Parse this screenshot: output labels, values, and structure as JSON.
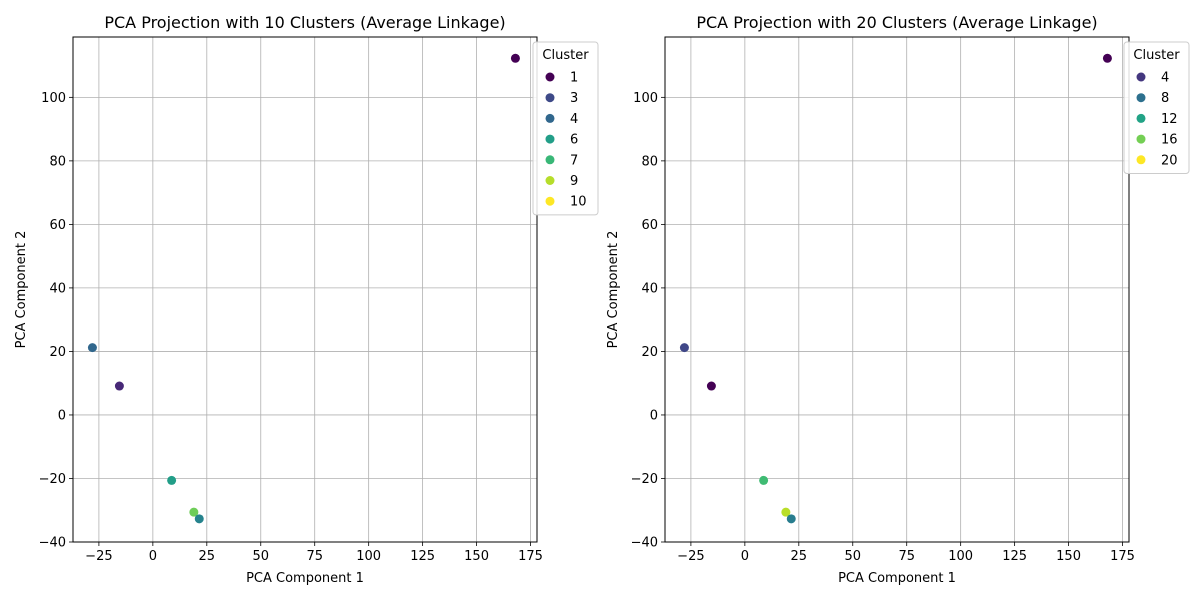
{
  "chart_data": [
    {
      "type": "scatter",
      "title": "PCA Projection with 10 Clusters (Average Linkage)",
      "xlabel": "PCA Component 1",
      "ylabel": "PCA Component 2",
      "xlim": [
        -37,
        178
      ],
      "ylim": [
        -40,
        119
      ],
      "xticks": [
        -25,
        0,
        25,
        50,
        75,
        100,
        125,
        150,
        175
      ],
      "yticks": [
        -40,
        -20,
        0,
        20,
        40,
        60,
        80,
        100
      ],
      "grid": true,
      "colormap": "viridis",
      "cluster_range": [
        1,
        10
      ],
      "legend": {
        "title": "Cluster",
        "placement": "upper right, outside",
        "entries": [
          {
            "label": "1",
            "value": 1
          },
          {
            "label": "3",
            "value": 3
          },
          {
            "label": "4",
            "value": 4
          },
          {
            "label": "6",
            "value": 6
          },
          {
            "label": "7",
            "value": 7
          },
          {
            "label": "9",
            "value": 9
          },
          {
            "label": "10",
            "value": 10
          }
        ]
      },
      "points": [
        {
          "x": 168,
          "y": 112.3,
          "cluster": 1
        },
        {
          "x": -28,
          "y": 21.2,
          "cluster": 4
        },
        {
          "x": -15.5,
          "y": 9.1,
          "cluster": 2
        },
        {
          "x": 8.7,
          "y": -20.6,
          "cluster": 6
        },
        {
          "x": 19,
          "y": -30.6,
          "cluster": 8
        },
        {
          "x": 21.5,
          "y": -32.7,
          "cluster": 5
        }
      ]
    },
    {
      "type": "scatter",
      "title": "PCA Projection with 20 Clusters (Average Linkage)",
      "xlabel": "PCA Component 1",
      "ylabel": "PCA Component 2",
      "xlim": [
        -37,
        178
      ],
      "ylim": [
        -40,
        119
      ],
      "xticks": [
        -25,
        0,
        25,
        50,
        75,
        100,
        125,
        150,
        175
      ],
      "yticks": [
        -40,
        -20,
        0,
        20,
        40,
        60,
        80,
        100
      ],
      "grid": true,
      "colormap": "viridis",
      "cluster_range": [
        1,
        20
      ],
      "legend": {
        "title": "Cluster",
        "placement": "upper right, outside",
        "entries": [
          {
            "label": "4",
            "value": 4
          },
          {
            "label": "8",
            "value": 8
          },
          {
            "label": "12",
            "value": 12
          },
          {
            "label": "16",
            "value": 16
          },
          {
            "label": "20",
            "value": 20
          }
        ]
      },
      "points": [
        {
          "x": 168,
          "y": 112.3,
          "cluster": 1
        },
        {
          "x": -28,
          "y": 21.2,
          "cluster": 5
        },
        {
          "x": -15.5,
          "y": 9.1,
          "cluster": 1
        },
        {
          "x": 8.7,
          "y": -20.6,
          "cluster": 14
        },
        {
          "x": 19,
          "y": -30.6,
          "cluster": 18
        },
        {
          "x": 21.5,
          "y": -32.7,
          "cluster": 9
        }
      ]
    }
  ]
}
